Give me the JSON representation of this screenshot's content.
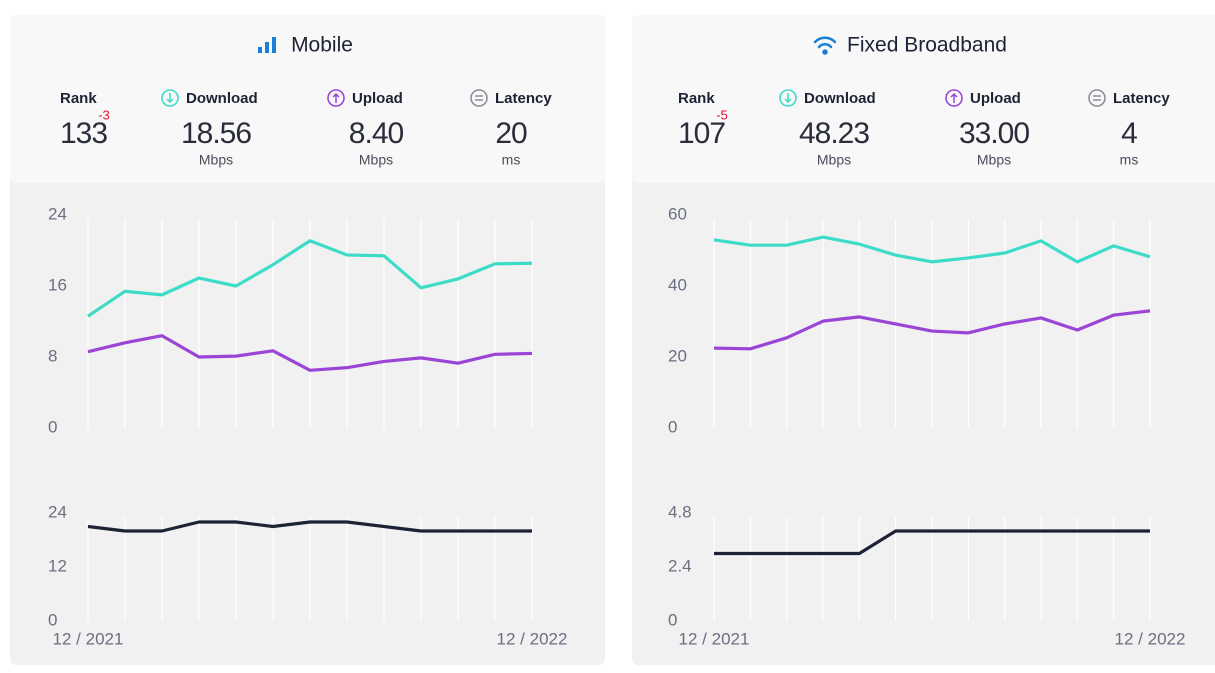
{
  "panels": [
    {
      "title": "Mobile",
      "stats": [
        {
          "label": "Rank",
          "value": "133",
          "change": "-3"
        },
        {
          "label": "Download",
          "value": "18.56",
          "unit": "Mbps"
        },
        {
          "label": "Upload",
          "value": "8.40",
          "unit": "Mbps"
        },
        {
          "label": "Latency",
          "value": "20",
          "unit": "ms"
        }
      ]
    },
    {
      "title": "Fixed Broadband",
      "stats": [
        {
          "label": "Rank",
          "value": "107",
          "change": "-5"
        },
        {
          "label": "Download",
          "value": "48.23",
          "unit": "Mbps"
        },
        {
          "label": "Upload",
          "value": "33.00",
          "unit": "Mbps"
        },
        {
          "label": "Latency",
          "value": "4",
          "unit": "ms"
        }
      ]
    }
  ],
  "chart_data": [
    {
      "type": "line",
      "ylim": [
        0,
        24
      ],
      "yticks": [
        0,
        8,
        16,
        24
      ],
      "grid": true,
      "series": [
        {
          "color": "#3ddcc8",
          "values": [
            12.6,
            15.4,
            15.0,
            16.9,
            16.0,
            18.4,
            21.1,
            19.5,
            19.4,
            15.8,
            16.8,
            18.5,
            18.56
          ]
        },
        {
          "color": "#9b45d6",
          "values": [
            8.6,
            9.6,
            10.4,
            8.0,
            8.1,
            8.7,
            6.5,
            6.8,
            7.5,
            7.9,
            7.3,
            8.3,
            8.4
          ]
        }
      ]
    },
    {
      "type": "line",
      "ylim": [
        0,
        24
      ],
      "yticks": [
        0,
        12,
        24
      ],
      "grid": true,
      "categories": [
        "12 / 2021",
        null,
        null,
        null,
        null,
        null,
        null,
        null,
        null,
        null,
        null,
        null,
        "12 / 2022"
      ],
      "series": [
        {
          "color": "#1e2235",
          "values": [
            21,
            20,
            20,
            22,
            22,
            21,
            22,
            22,
            21,
            20,
            20,
            20,
            20
          ]
        }
      ]
    },
    {
      "type": "line",
      "ylim": [
        0,
        60
      ],
      "yticks": [
        0,
        20,
        40,
        60
      ],
      "grid": true,
      "series": [
        {
          "color": "#3ddcc8",
          "values": [
            53.0,
            51.5,
            51.5,
            53.8,
            51.8,
            48.7,
            46.8,
            47.9,
            49.3,
            52.7,
            46.8,
            51.3,
            48.23
          ]
        },
        {
          "color": "#9b45d6",
          "values": [
            22.5,
            22.3,
            25.4,
            30.1,
            31.3,
            29.3,
            27.3,
            26.8,
            29.3,
            31.0,
            27.6,
            31.8,
            33.0
          ]
        }
      ]
    },
    {
      "type": "line",
      "ylim": [
        0,
        4.8
      ],
      "yticks": [
        0,
        2.4,
        4.8
      ],
      "grid": true,
      "categories": [
        "12 / 2021",
        null,
        null,
        null,
        null,
        null,
        null,
        null,
        null,
        null,
        null,
        null,
        "12 / 2022"
      ],
      "series": [
        {
          "color": "#1e2235",
          "values": [
            3,
            3,
            3,
            3,
            3,
            4,
            4,
            4,
            4,
            4,
            4,
            4,
            4
          ]
        }
      ]
    }
  ]
}
